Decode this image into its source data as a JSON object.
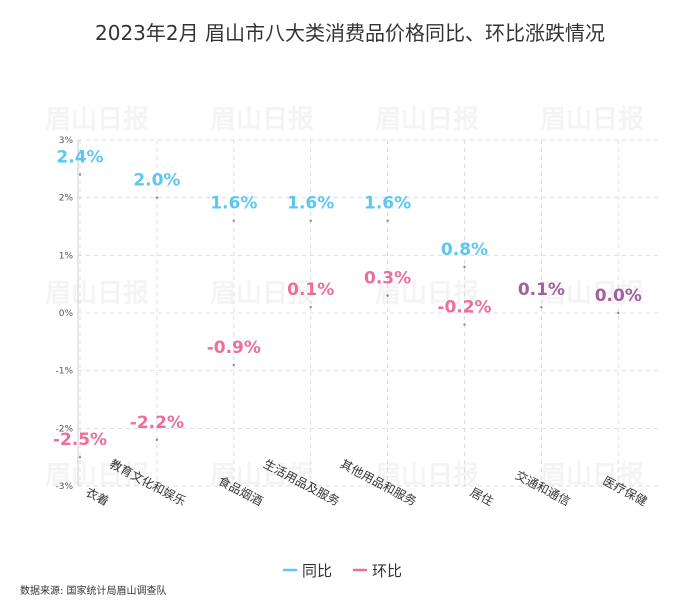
{
  "chart_data": {
    "type": "scatter",
    "title": "2023年2月 眉山市八大类消费品价格同比、环比涨跌情况",
    "categories": [
      "衣着",
      "教育文化和娱乐",
      "食品烟酒",
      "生活用品及服务",
      "其他用品和服务",
      "居住",
      "交通和通信",
      "医疗保健"
    ],
    "series": [
      {
        "name": "同比",
        "color": "#5bc8f0",
        "values": [
          2.4,
          2.0,
          1.6,
          1.6,
          1.6,
          0.8,
          0.1,
          0.0
        ]
      },
      {
        "name": "环比",
        "color": "#ec6f97",
        "values": [
          -2.5,
          -2.2,
          -0.9,
          0.1,
          0.3,
          -0.2,
          0.1,
          0.0
        ]
      }
    ],
    "overlap_color": "#a0619e",
    "ylim": [
      -3,
      3
    ],
    "yticks": [
      -3,
      -2,
      -1,
      0,
      1,
      2,
      3
    ],
    "grid": true,
    "legend": "bottom-center"
  },
  "source": "数据来源: 国家统计局眉山调查队",
  "watermark": "眉山日报"
}
